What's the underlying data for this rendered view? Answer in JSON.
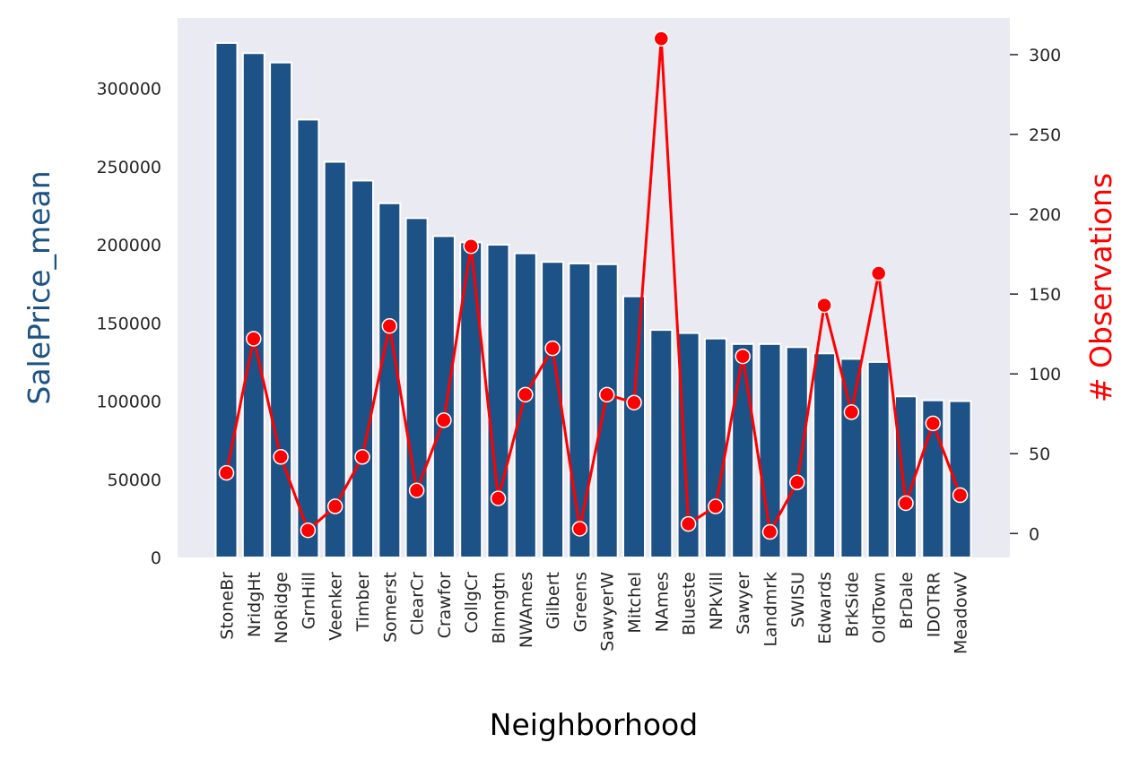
{
  "chart_data": {
    "type": "bar+line",
    "xlabel": "Neighborhood",
    "ylabel_left": "SalePrice_mean",
    "ylabel_right": "# Observations",
    "categories": [
      "StoneBr",
      "NridgHt",
      "NoRidge",
      "GrnHill",
      "Veenker",
      "Timber",
      "Somerst",
      "ClearCr",
      "Crawfor",
      "CollgCr",
      "Blmngtn",
      "NWAmes",
      "Gilbert",
      "Greens",
      "SawyerW",
      "Mitchel",
      "NAmes",
      "Blueste",
      "NPkVill",
      "Sawyer",
      "Landmrk",
      "SWISU",
      "Edwards",
      "BrkSide",
      "OldTown",
      "BrDale",
      "IDOTRR",
      "MeadowV"
    ],
    "bar_series": {
      "values": [
        329000,
        322500,
        316500,
        280000,
        253000,
        241000,
        226500,
        217000,
        205500,
        201500,
        200000,
        194500,
        189000,
        188000,
        187500,
        167000,
        145500,
        143500,
        140000,
        136500,
        136500,
        134500,
        130500,
        127000,
        125000,
        103000,
        100500,
        100000
      ]
    },
    "line_series": {
      "values": [
        38,
        122,
        48,
        2,
        17,
        48,
        130,
        27,
        71,
        180,
        22,
        87,
        116,
        3,
        87,
        82,
        310,
        6,
        17,
        111,
        1,
        32,
        143,
        76,
        163,
        19,
        69,
        24
      ]
    },
    "ylim_left": [
      0,
      345000
    ],
    "yticks_left": [
      "0",
      "50000",
      "100000",
      "150000",
      "200000",
      "250000",
      "300000"
    ],
    "ylim_right": [
      -15,
      323
    ],
    "yticks_right": [
      "0",
      "50",
      "100",
      "150",
      "200",
      "250",
      "300"
    ],
    "grid": false,
    "colors": {
      "bar": "#1c5286",
      "line": "#ff0000",
      "plot_bg": "#eaeaf2",
      "left_label": "#1c5286",
      "right_label": "#ff0000"
    }
  }
}
